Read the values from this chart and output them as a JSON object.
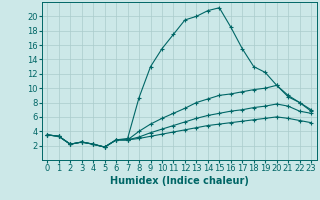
{
  "title": "",
  "xlabel": "Humidex (Indice chaleur)",
  "bg_color": "#cce8e8",
  "line_color": "#006666",
  "grid_color": "#aacccc",
  "xlim": [
    -0.5,
    23.5
  ],
  "ylim": [
    0,
    22
  ],
  "xticks": [
    0,
    1,
    2,
    3,
    4,
    5,
    6,
    7,
    8,
    9,
    10,
    11,
    12,
    13,
    14,
    15,
    16,
    17,
    18,
    19,
    20,
    21,
    22,
    23
  ],
  "yticks": [
    2,
    4,
    6,
    8,
    10,
    12,
    14,
    16,
    18,
    20
  ],
  "lines": [
    {
      "x": [
        0,
        1,
        2,
        3,
        4,
        5,
        6,
        7,
        8,
        9,
        10,
        11,
        12,
        13,
        14,
        15,
        16,
        17,
        18,
        19,
        20,
        21,
        22,
        23
      ],
      "y": [
        3.5,
        3.3,
        2.2,
        2.5,
        2.2,
        1.8,
        2.8,
        3.0,
        8.7,
        13.0,
        15.5,
        17.5,
        19.5,
        20.0,
        20.8,
        21.2,
        18.5,
        15.5,
        13.0,
        12.2,
        10.4,
        9.0,
        8.0,
        7.0
      ]
    },
    {
      "x": [
        0,
        1,
        2,
        3,
        4,
        5,
        6,
        7,
        8,
        9,
        10,
        11,
        12,
        13,
        14,
        15,
        16,
        17,
        18,
        19,
        20,
        21,
        22,
        23
      ],
      "y": [
        3.5,
        3.3,
        2.2,
        2.5,
        2.2,
        1.8,
        2.8,
        2.8,
        4.0,
        5.0,
        5.8,
        6.5,
        7.2,
        8.0,
        8.5,
        9.0,
        9.2,
        9.5,
        9.8,
        10.0,
        10.4,
        8.8,
        8.0,
        6.8
      ]
    },
    {
      "x": [
        0,
        1,
        2,
        3,
        4,
        5,
        6,
        7,
        8,
        9,
        10,
        11,
        12,
        13,
        14,
        15,
        16,
        17,
        18,
        19,
        20,
        21,
        22,
        23
      ],
      "y": [
        3.5,
        3.3,
        2.2,
        2.5,
        2.2,
        1.8,
        2.8,
        2.8,
        3.2,
        3.8,
        4.3,
        4.8,
        5.3,
        5.8,
        6.2,
        6.5,
        6.8,
        7.0,
        7.3,
        7.5,
        7.8,
        7.5,
        6.8,
        6.5
      ]
    },
    {
      "x": [
        0,
        1,
        2,
        3,
        4,
        5,
        6,
        7,
        8,
        9,
        10,
        11,
        12,
        13,
        14,
        15,
        16,
        17,
        18,
        19,
        20,
        21,
        22,
        23
      ],
      "y": [
        3.5,
        3.3,
        2.2,
        2.5,
        2.2,
        1.8,
        2.8,
        2.8,
        3.0,
        3.3,
        3.6,
        3.9,
        4.2,
        4.5,
        4.8,
        5.0,
        5.2,
        5.4,
        5.6,
        5.8,
        6.0,
        5.8,
        5.5,
        5.2
      ]
    }
  ],
  "xlabel_fontsize": 7,
  "tick_fontsize": 6
}
